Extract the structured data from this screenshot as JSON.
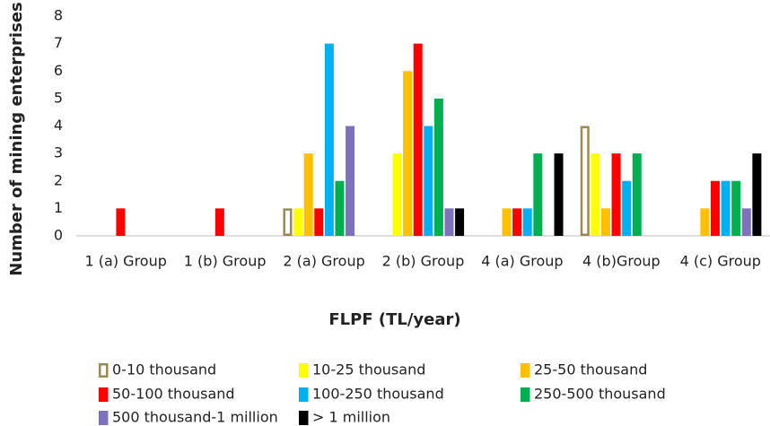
{
  "chart_data": {
    "type": "bar",
    "xlabel": "FLPF (TL/year)",
    "ylabel": "Number of mining enterprises",
    "categories": [
      "1 (a) Group",
      "1 (b) Group",
      "2 (a) Group",
      "2 (b) Group",
      "4 (a) Group",
      "4 (b)Group",
      "4 (c) Group"
    ],
    "series": [
      {
        "name": "0-10 thousand",
        "color": "#ffffff",
        "edgecolor": "#9c8a52",
        "values": [
          null,
          null,
          1,
          null,
          null,
          4,
          null
        ]
      },
      {
        "name": "10-25 thousand",
        "color": "#ffff00",
        "values": [
          null,
          null,
          1,
          3,
          null,
          3,
          null
        ]
      },
      {
        "name": "25-50 thousand",
        "color": "#ffc000",
        "values": [
          null,
          null,
          3,
          6,
          1,
          1,
          1
        ]
      },
      {
        "name": "50-100 thousand",
        "color": "#ff0000",
        "values": [
          1,
          1,
          1,
          7,
          1,
          3,
          2
        ]
      },
      {
        "name": "100-250 thousand",
        "color": "#00b0f0",
        "values": [
          null,
          null,
          7,
          4,
          1,
          2,
          2
        ]
      },
      {
        "name": "250-500 thousand",
        "color": "#00b050",
        "values": [
          null,
          null,
          2,
          5,
          3,
          3,
          2
        ]
      },
      {
        "name": "500 thousand-1 million",
        "color": "#7f72bd",
        "values": [
          null,
          null,
          4,
          1,
          null,
          null,
          1
        ]
      },
      {
        "name": "> 1 million",
        "color": "#000000",
        "values": [
          null,
          null,
          null,
          1,
          3,
          null,
          3
        ]
      }
    ],
    "ylim": [
      0,
      8
    ],
    "yticks": [
      0,
      1,
      2,
      3,
      4,
      5,
      6,
      7,
      8
    ],
    "grid": false,
    "legend": "bottom"
  }
}
